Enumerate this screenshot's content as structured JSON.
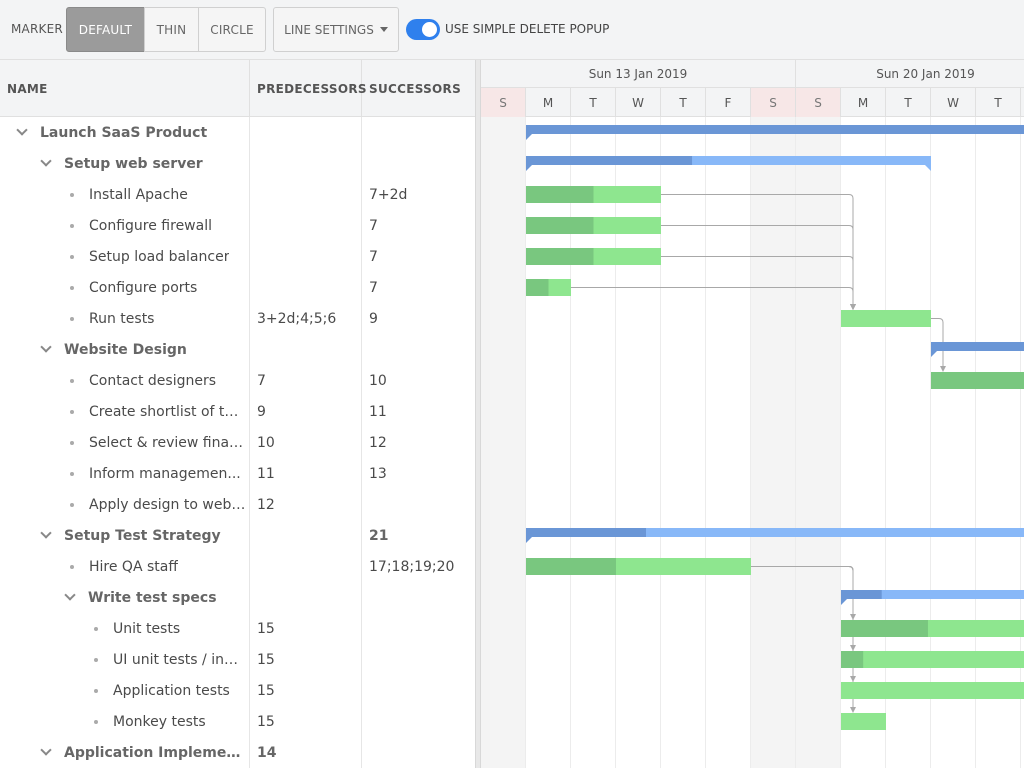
{
  "toolbar": {
    "marker_label": "MARKER",
    "marker_options": [
      "DEFAULT",
      "THIN",
      "CIRCLE"
    ],
    "line_settings_label": "LINE SETTINGS",
    "toggle_label": "USE SIMPLE DELETE POPUP",
    "toggle_on": true
  },
  "grid": {
    "columns": [
      "NAME",
      "PREDECESSORS",
      "SUCCESSORS"
    ],
    "rows": [
      {
        "name": "Launch SaaS Product",
        "pred": "",
        "succ": "",
        "level": 0,
        "parent": true
      },
      {
        "name": "Setup web server",
        "pred": "",
        "succ": "",
        "level": 1,
        "parent": true
      },
      {
        "name": "Install Apache",
        "pred": "",
        "succ": "7+2d",
        "level": 2,
        "parent": false
      },
      {
        "name": "Configure firewall",
        "pred": "",
        "succ": "7",
        "level": 2,
        "parent": false
      },
      {
        "name": "Setup load balancer",
        "pred": "",
        "succ": "7",
        "level": 2,
        "parent": false
      },
      {
        "name": "Configure ports",
        "pred": "",
        "succ": "7",
        "level": 2,
        "parent": false
      },
      {
        "name": "Run tests",
        "pred": "3+2d;4;5;6",
        "succ": "9",
        "level": 2,
        "parent": false
      },
      {
        "name": "Website Design",
        "pred": "",
        "succ": "",
        "level": 1,
        "parent": true
      },
      {
        "name": "Contact designers",
        "pred": "7",
        "succ": "10",
        "level": 2,
        "parent": false
      },
      {
        "name": "Create shortlist of th...",
        "pred": "9",
        "succ": "11",
        "level": 2,
        "parent": false
      },
      {
        "name": "Select & review final ...",
        "pred": "10",
        "succ": "12",
        "level": 2,
        "parent": false
      },
      {
        "name": "Inform managemen...",
        "pred": "11",
        "succ": "13",
        "level": 2,
        "parent": false
      },
      {
        "name": "Apply design to web ...",
        "pred": "12",
        "succ": "",
        "level": 2,
        "parent": false
      },
      {
        "name": "Setup Test Strategy",
        "pred": "",
        "succ": "21",
        "level": 1,
        "parent": true
      },
      {
        "name": "Hire QA staff",
        "pred": "",
        "succ": "17;18;19;20",
        "level": 2,
        "parent": false
      },
      {
        "name": "Write test specs",
        "pred": "",
        "succ": "",
        "level": 2,
        "parent": true
      },
      {
        "name": "Unit tests",
        "pred": "15",
        "succ": "",
        "level": 3,
        "parent": false
      },
      {
        "name": "UI unit tests / indi...",
        "pred": "15",
        "succ": "",
        "level": 3,
        "parent": false
      },
      {
        "name": "Application tests",
        "pred": "15",
        "succ": "",
        "level": 3,
        "parent": false
      },
      {
        "name": "Monkey tests",
        "pred": "15",
        "succ": "",
        "level": 3,
        "parent": false
      },
      {
        "name": "Application Implement...",
        "pred": "14",
        "succ": "",
        "level": 1,
        "parent": true
      }
    ]
  },
  "timeline": {
    "weeks": [
      "Sun 13 Jan 2019",
      "Sun 20 Jan 2019"
    ],
    "days": [
      "S",
      "M",
      "T",
      "W",
      "T",
      "F",
      "S",
      "S",
      "M",
      "T",
      "W",
      "T"
    ],
    "weekend_days": [
      0,
      6,
      7
    ],
    "colors": {
      "summary_dark": "#6a96d6",
      "summary_light": "#88b8f8",
      "task_dark": "#79c77f",
      "task_light": "#8ee68f",
      "dependency_line": "#a8a8a8",
      "weekend_shade": "#f4f4f4"
    },
    "tasks": [
      {
        "row": 0,
        "type": "summary",
        "start_day": 1,
        "days": 99,
        "progress": 0
      },
      {
        "row": 1,
        "type": "summary",
        "start_day": 1,
        "days": 9,
        "progress": 0.41
      },
      {
        "row": 2,
        "type": "task",
        "start_day": 1,
        "days": 3,
        "progress": 0.5
      },
      {
        "row": 3,
        "type": "task",
        "start_day": 1,
        "days": 3,
        "progress": 0.5
      },
      {
        "row": 4,
        "type": "task",
        "start_day": 1,
        "days": 3,
        "progress": 0.5
      },
      {
        "row": 5,
        "type": "task",
        "start_day": 1,
        "days": 1,
        "progress": 0.5
      },
      {
        "row": 6,
        "type": "task",
        "start_day": 8,
        "days": 2,
        "progress": 0
      },
      {
        "row": 7,
        "type": "summary",
        "start_day": 10,
        "days": 99,
        "progress": 0
      },
      {
        "row": 8,
        "type": "task",
        "start_day": 10,
        "days": 99,
        "progress": 1
      },
      {
        "row": 13,
        "type": "summary",
        "start_day": 1,
        "days": 99,
        "progress": 0.24
      },
      {
        "row": 14,
        "type": "task",
        "start_day": 1,
        "days": 5,
        "progress": 0.4
      },
      {
        "row": 15,
        "type": "summary",
        "start_day": 8,
        "days": 99,
        "progress": 0.22
      },
      {
        "row": 16,
        "type": "task",
        "start_day": 8,
        "days": 99,
        "progress": 0.47
      },
      {
        "row": 17,
        "type": "task",
        "start_day": 8,
        "days": 99,
        "progress": 0.12
      },
      {
        "row": 18,
        "type": "task",
        "start_day": 8,
        "days": 99,
        "progress": 0
      },
      {
        "row": 19,
        "type": "task",
        "start_day": 8,
        "days": 1,
        "progress": 0
      }
    ],
    "dependencies": [
      {
        "from": 2,
        "to": 6
      },
      {
        "from": 3,
        "to": 6
      },
      {
        "from": 4,
        "to": 6
      },
      {
        "from": 5,
        "to": 6
      },
      {
        "from": 6,
        "to": 8
      },
      {
        "from": 14,
        "to": 16
      },
      {
        "from": 14,
        "to": 17
      },
      {
        "from": 14,
        "to": 18
      },
      {
        "from": 14,
        "to": 19
      }
    ]
  }
}
